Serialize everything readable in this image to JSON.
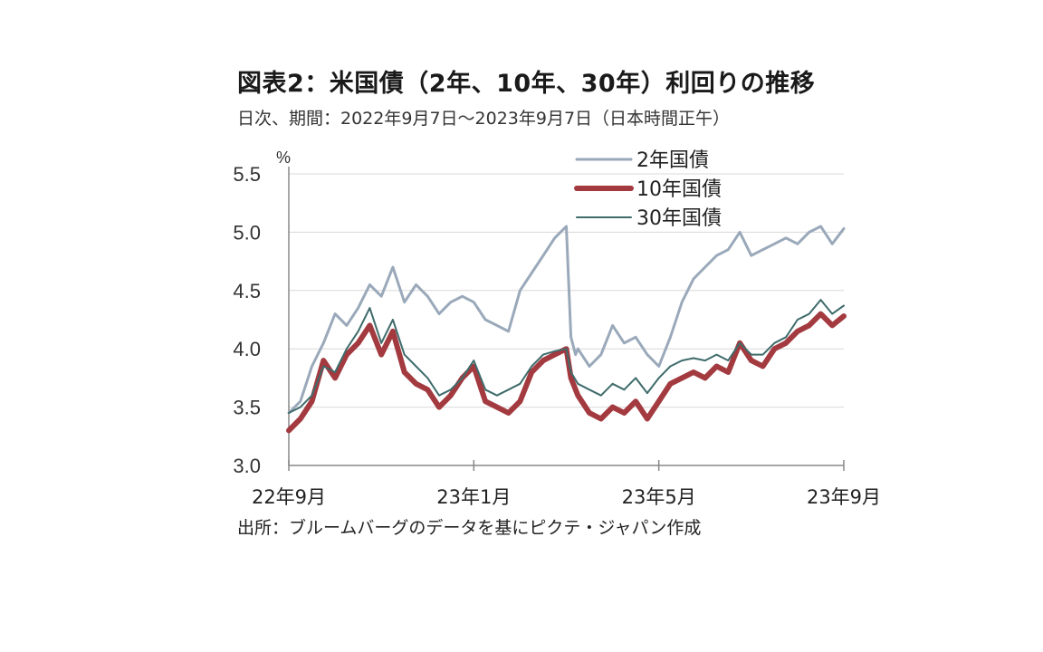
{
  "header": {
    "title": "図表2：米国債（2年、10年、30年）利回りの推移",
    "subtitle": "日次、期間：2022年9月7日～2023年9月7日（日本時間正午）"
  },
  "footer": {
    "source": "出所：ブルームバーグのデータを基にピクテ・ジャパン作成"
  },
  "colors": {
    "two_year": "#9aa9ba",
    "ten_year": "#a33a3f",
    "thirty_year": "#3f6b6b",
    "grid": "#d8d8d8",
    "axis": "#888888"
  },
  "chart_data": {
    "type": "line",
    "unit_label": "%",
    "ylim": [
      3.0,
      5.5
    ],
    "yticks": [
      "3.0",
      "3.5",
      "4.0",
      "4.5",
      "5.0",
      "5.5"
    ],
    "xlim": [
      0,
      12
    ],
    "xticks": [
      {
        "x": 0,
        "label": "22年9月"
      },
      {
        "x": 4,
        "label": "23年1月"
      },
      {
        "x": 8,
        "label": "23年5月"
      },
      {
        "x": 12,
        "label": "23年9月"
      }
    ],
    "grid": "horizontal",
    "legend_position": "top-right",
    "series": [
      {
        "name": "2年国債",
        "key": "two_year",
        "x": [
          0,
          0.25,
          0.5,
          0.75,
          1.0,
          1.25,
          1.5,
          1.75,
          2.0,
          2.25,
          2.5,
          2.75,
          3.0,
          3.25,
          3.5,
          3.75,
          4.0,
          4.25,
          4.5,
          4.75,
          5.0,
          5.25,
          5.5,
          5.75,
          6.0,
          6.1,
          6.2,
          6.25,
          6.5,
          6.75,
          7.0,
          7.25,
          7.5,
          7.75,
          8.0,
          8.25,
          8.5,
          8.75,
          9.0,
          9.25,
          9.5,
          9.75,
          10.0,
          10.25,
          10.5,
          10.75,
          11.0,
          11.25,
          11.5,
          11.75,
          12.0
        ],
        "values": [
          3.45,
          3.55,
          3.85,
          4.05,
          4.3,
          4.2,
          4.35,
          4.55,
          4.45,
          4.7,
          4.4,
          4.55,
          4.45,
          4.3,
          4.4,
          4.45,
          4.4,
          4.25,
          4.2,
          4.15,
          4.5,
          4.65,
          4.8,
          4.95,
          5.05,
          4.1,
          3.95,
          4.0,
          3.85,
          3.95,
          4.2,
          4.05,
          4.1,
          3.95,
          3.85,
          4.1,
          4.4,
          4.6,
          4.7,
          4.8,
          4.85,
          5.0,
          4.8,
          4.85,
          4.9,
          4.95,
          4.9,
          5.0,
          5.05,
          4.9,
          5.03
        ]
      },
      {
        "name": "10年国債",
        "key": "ten_year",
        "x": [
          0,
          0.25,
          0.5,
          0.75,
          1.0,
          1.25,
          1.5,
          1.75,
          2.0,
          2.25,
          2.5,
          2.75,
          3.0,
          3.25,
          3.5,
          3.75,
          4.0,
          4.25,
          4.5,
          4.75,
          5.0,
          5.25,
          5.5,
          5.75,
          6.0,
          6.1,
          6.25,
          6.5,
          6.75,
          7.0,
          7.25,
          7.5,
          7.75,
          8.0,
          8.25,
          8.5,
          8.75,
          9.0,
          9.25,
          9.5,
          9.75,
          10.0,
          10.25,
          10.5,
          10.75,
          11.0,
          11.25,
          11.5,
          11.75,
          12.0
        ],
        "values": [
          3.3,
          3.4,
          3.55,
          3.9,
          3.75,
          3.95,
          4.05,
          4.2,
          3.95,
          4.15,
          3.8,
          3.7,
          3.65,
          3.5,
          3.6,
          3.75,
          3.85,
          3.55,
          3.5,
          3.45,
          3.55,
          3.8,
          3.9,
          3.95,
          4.0,
          3.75,
          3.6,
          3.45,
          3.4,
          3.5,
          3.45,
          3.55,
          3.4,
          3.55,
          3.7,
          3.75,
          3.8,
          3.75,
          3.85,
          3.8,
          4.05,
          3.9,
          3.85,
          4.0,
          4.05,
          4.15,
          4.2,
          4.3,
          4.2,
          4.28
        ]
      },
      {
        "name": "30年国債",
        "key": "thirty_year",
        "x": [
          0,
          0.25,
          0.5,
          0.75,
          1.0,
          1.25,
          1.5,
          1.75,
          2.0,
          2.25,
          2.5,
          2.75,
          3.0,
          3.25,
          3.5,
          3.75,
          4.0,
          4.25,
          4.5,
          4.75,
          5.0,
          5.25,
          5.5,
          5.75,
          6.0,
          6.1,
          6.25,
          6.5,
          6.75,
          7.0,
          7.25,
          7.5,
          7.75,
          8.0,
          8.25,
          8.5,
          8.75,
          9.0,
          9.25,
          9.5,
          9.75,
          10.0,
          10.25,
          10.5,
          10.75,
          11.0,
          11.25,
          11.5,
          11.75,
          12.0
        ],
        "values": [
          3.45,
          3.5,
          3.6,
          3.85,
          3.8,
          4.0,
          4.15,
          4.35,
          4.05,
          4.25,
          3.95,
          3.85,
          3.75,
          3.6,
          3.65,
          3.75,
          3.9,
          3.65,
          3.6,
          3.65,
          3.7,
          3.85,
          3.95,
          3.98,
          4.0,
          3.8,
          3.7,
          3.65,
          3.6,
          3.7,
          3.65,
          3.75,
          3.62,
          3.75,
          3.85,
          3.9,
          3.92,
          3.9,
          3.95,
          3.9,
          4.05,
          3.95,
          3.95,
          4.05,
          4.1,
          4.25,
          4.3,
          4.42,
          4.3,
          4.37
        ]
      }
    ]
  }
}
